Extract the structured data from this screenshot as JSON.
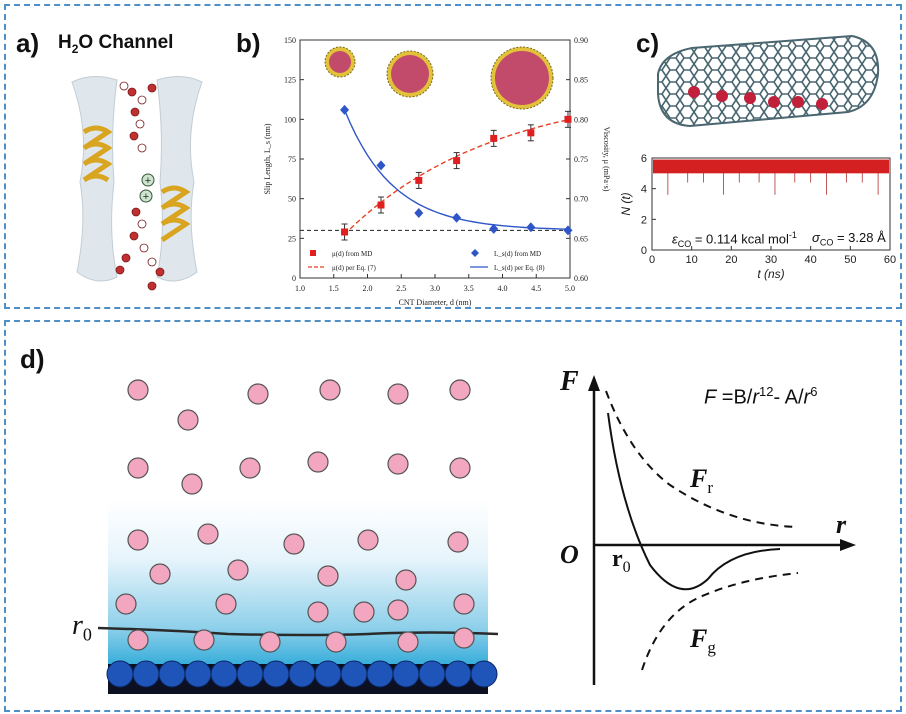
{
  "panel_a": {
    "label": "a)",
    "title_pre": "H",
    "title_sub": "2",
    "title_post": "O Channel"
  },
  "panel_b": {
    "label": "b)",
    "chart_data": {
      "type": "line",
      "xlabel": "CNT Diameter, d (nm)",
      "ylabel_left": "Slip Length, L_s (nm)",
      "ylabel_right": "Viscosity, μ (mPa·s)",
      "xlim": [
        1.0,
        5.0
      ],
      "ylim_left": [
        0,
        150
      ],
      "ylim_right": [
        0.6,
        0.9
      ],
      "x_ticks": [
        "1.0",
        "1.5",
        "2.0",
        "2.5",
        "3.0",
        "3.5",
        "4.0",
        "4.5",
        "5.0"
      ],
      "y_left_ticks": [
        "0",
        "25",
        "50",
        "75",
        "100",
        "125",
        "150"
      ],
      "y_right_ticks": [
        "0.60",
        "0.65",
        "0.70",
        "0.75",
        "0.80",
        "0.85",
        "0.90"
      ],
      "series": [
        {
          "name": "μ(d) from MD",
          "axis": "right",
          "marker": "square",
          "color": "#e02020",
          "x": [
            1.66,
            2.2,
            2.76,
            3.32,
            3.87,
            4.42,
            4.97
          ],
          "y": [
            0.658,
            0.692,
            0.723,
            0.748,
            0.776,
            0.783,
            0.8
          ]
        },
        {
          "name": "L_s(d) from MD",
          "axis": "left",
          "marker": "diamond",
          "color": "#2f56c8",
          "x": [
            1.66,
            2.2,
            2.76,
            3.32,
            3.87,
            4.42,
            4.97
          ],
          "y": [
            106,
            71,
            41,
            38,
            31,
            32,
            30
          ]
        },
        {
          "name": "μ(d) per Eq. (7)",
          "axis": "right",
          "style": "dashed",
          "color": "#e84020"
        },
        {
          "name": "L_s(d) per Eq. (8)",
          "axis": "left",
          "style": "solid",
          "color": "#2f56c8"
        }
      ],
      "reference_line_left": 30,
      "legend_placement": "bottom"
    }
  },
  "panel_c": {
    "label": "c)",
    "ylabel": "N (t)",
    "xlabel": "t (ns)",
    "xlim": [
      0,
      60
    ],
    "ylim": [
      0,
      6
    ],
    "x_ticks": [
      "0",
      "10",
      "20",
      "30",
      "40",
      "50",
      "60"
    ],
    "y_ticks": [
      "0",
      "2",
      "4",
      "6"
    ],
    "eps_label": "ε",
    "eps_sub": "CO",
    "eps_value": " = 0.114 kcal mol",
    "eps_sup": "-1",
    "sigma_label": "σ",
    "sigma_sub": "CO",
    "sigma_value": " = 3.28 Å",
    "data_color": "#d42020"
  },
  "panel_d": {
    "label": "d)",
    "r0_label": "r",
    "r0_sub": "0",
    "formula_F": "F",
    "formula_mid1": " =B/",
    "formula_r1": "r",
    "formula_sup1": "12",
    "formula_mid2": "- A/",
    "formula_r2": "r",
    "formula_sup2": "6",
    "axis_F": "F",
    "axis_r": "r",
    "origin": "O",
    "Fr": "F",
    "Fr_sub": "r",
    "Fg": "F",
    "Fg_sub": "g",
    "r0_curve_label": "r",
    "r0_curve_sub": "0"
  }
}
